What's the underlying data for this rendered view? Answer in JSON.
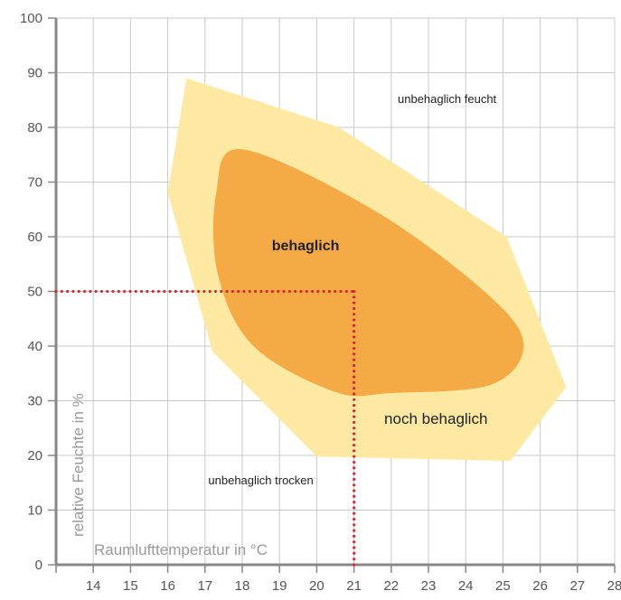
{
  "chart_data": {
    "type": "area",
    "xlabel": "Raumlufttemperatur in °C",
    "ylabel": "relative Feuchte in %",
    "xlim": [
      13,
      28
    ],
    "ylim": [
      0,
      100
    ],
    "x_ticks": [
      14,
      15,
      16,
      17,
      18,
      19,
      20,
      21,
      22,
      23,
      24,
      25,
      26,
      27,
      28
    ],
    "y_ticks": [
      0,
      10,
      20,
      30,
      40,
      50,
      60,
      70,
      80,
      90,
      100
    ],
    "grid": true,
    "regions": [
      {
        "name": "noch behaglich",
        "color": "#fee9a3",
        "points": [
          [
            16.5,
            89
          ],
          [
            20.6,
            80
          ],
          [
            25.1,
            60
          ],
          [
            26.7,
            32.5
          ],
          [
            25.2,
            19
          ],
          [
            20,
            19.8
          ],
          [
            17.2,
            39
          ],
          [
            16,
            68
          ]
        ]
      },
      {
        "name": "behaglich",
        "color": "#f5aa45",
        "points": [
          [
            18,
            76
          ],
          [
            21.5,
            65
          ],
          [
            24.5,
            50
          ],
          [
            25.55,
            40.5
          ],
          [
            24.7,
            33
          ],
          [
            22,
            31.4
          ],
          [
            20.5,
            31.6
          ],
          [
            18.3,
            40
          ],
          [
            17.35,
            53
          ],
          [
            17.3,
            68
          ]
        ]
      }
    ],
    "annotations": [
      {
        "text": "unbehaglich feucht",
        "x": 23.5,
        "y": 84.5
      },
      {
        "text": "behaglich",
        "x": 19.7,
        "y": 57.5
      },
      {
        "text": "noch behaglich",
        "x": 23.2,
        "y": 25.8
      },
      {
        "text": "unbehaglich trocken",
        "x": 18.5,
        "y": 14.7
      }
    ],
    "reference_lines": {
      "color": "#d8202a",
      "point": [
        21,
        50
      ],
      "horizontal": {
        "y": 50,
        "x_from": 13,
        "x_to": 21
      },
      "vertical": {
        "x": 21,
        "y_from": 0,
        "y_to": 50
      }
    }
  }
}
